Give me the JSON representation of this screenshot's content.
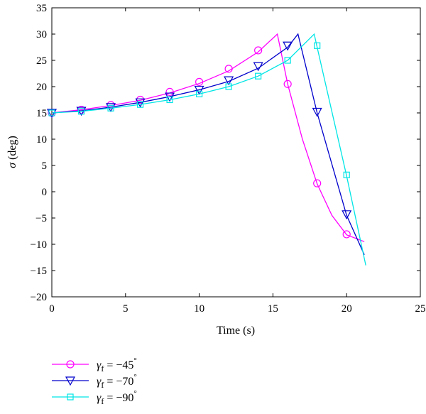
{
  "chart_data": {
    "type": "line",
    "xlabel": "Time (s)",
    "ylabel_symbol": "σ",
    "ylabel_unit": " (deg)",
    "xlim": [
      0,
      25
    ],
    "ylim": [
      -20,
      35
    ],
    "x_ticks": [
      0,
      5,
      10,
      15,
      20,
      25
    ],
    "y_ticks": [
      -20,
      -15,
      -10,
      -5,
      0,
      5,
      10,
      15,
      20,
      25,
      30,
      35
    ],
    "grid": false,
    "legend_position": "bottom-left, below plot",
    "series": [
      {
        "name_symbol": "γ",
        "name_subscript": "f",
        "name_value": " = −45",
        "name_degree": "°",
        "color": "#ff00ff",
        "marker": "circle",
        "x": [
          0,
          2,
          4,
          6,
          8,
          10,
          12,
          14,
          15.3,
          16,
          17,
          18,
          19,
          20,
          21.2
        ],
        "y": [
          15,
          15.6,
          16.4,
          17.4,
          18.8,
          20.6,
          23.0,
          26.6,
          30,
          20.5,
          10,
          1.5,
          -4.5,
          -8.2,
          -9.5
        ],
        "markers_x": [
          0,
          2,
          4,
          6,
          8,
          10,
          12,
          14,
          16,
          18,
          20
        ],
        "markers_y": [
          15,
          15.6,
          16.5,
          17.5,
          19,
          20.9,
          23.4,
          26.9,
          20.5,
          1.6,
          -8.1
        ]
      },
      {
        "name_symbol": "γ",
        "name_subscript": "f",
        "name_value": " = −70",
        "name_degree": "°",
        "color": "#0000cc",
        "marker": "triangle-down",
        "x": [
          0,
          2,
          4,
          6,
          8,
          10,
          12,
          14,
          16,
          16.7,
          18,
          20,
          21.2
        ],
        "y": [
          15,
          15.4,
          16.1,
          17.0,
          18.1,
          19.4,
          21.0,
          23.5,
          27.5,
          30,
          15,
          -4.5,
          -12
        ],
        "markers_x": [
          0,
          2,
          4,
          6,
          8,
          10,
          12,
          14,
          16,
          18,
          20
        ],
        "markers_y": [
          15,
          15.4,
          16.1,
          17,
          18.1,
          19.4,
          21.2,
          23.9,
          27.8,
          15.2,
          -4.3
        ]
      },
      {
        "name_symbol": "γ",
        "name_subscript": "f",
        "name_value": " = −90",
        "name_degree": "°",
        "color": "#00e5e5",
        "marker": "square",
        "x": [
          0,
          2,
          4,
          6,
          8,
          10,
          12,
          14,
          16,
          17.8,
          18,
          20,
          21.3
        ],
        "y": [
          15,
          15.3,
          15.9,
          16.6,
          17.5,
          18.6,
          20.0,
          22.0,
          25.0,
          30,
          27.5,
          3,
          -14
        ],
        "markers_x": [
          0,
          2,
          4,
          6,
          8,
          10,
          12,
          14,
          16,
          18,
          20
        ],
        "markers_y": [
          15,
          15.3,
          15.9,
          16.6,
          17.5,
          18.6,
          20,
          22,
          25,
          27.8,
          3.2
        ]
      }
    ]
  }
}
